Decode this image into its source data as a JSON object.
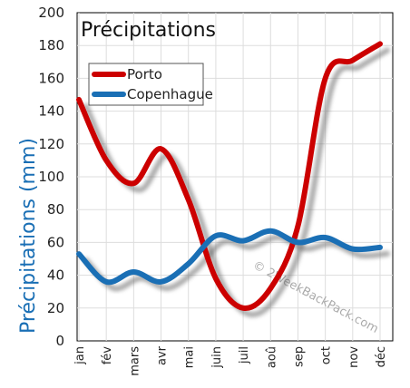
{
  "chart_data": {
    "type": "line",
    "title": "Précipitations",
    "ylabel": "Précipitations (mm)",
    "xlabel": "",
    "categories": [
      "jan",
      "fév",
      "mars",
      "avr",
      "mai",
      "juin",
      "juil",
      "aoû",
      "sep",
      "oct",
      "nov",
      "déc"
    ],
    "ylim": [
      0,
      200
    ],
    "yticks": [
      0,
      20,
      40,
      60,
      80,
      100,
      120,
      140,
      160,
      180,
      200
    ],
    "grid": true,
    "legend_position": "top-left",
    "series": [
      {
        "name": "Porto",
        "color": "#cc0000",
        "values": [
          147,
          110,
          96,
          117,
          86,
          38,
          20,
          32,
          70,
          160,
          171,
          181
        ]
      },
      {
        "name": "Copenhague",
        "color": "#1a6fb5",
        "values": [
          53,
          36,
          42,
          36,
          47,
          64,
          61,
          67,
          60,
          63,
          56,
          57
        ]
      }
    ],
    "watermark": "© 2WeekBackPack.com"
  }
}
